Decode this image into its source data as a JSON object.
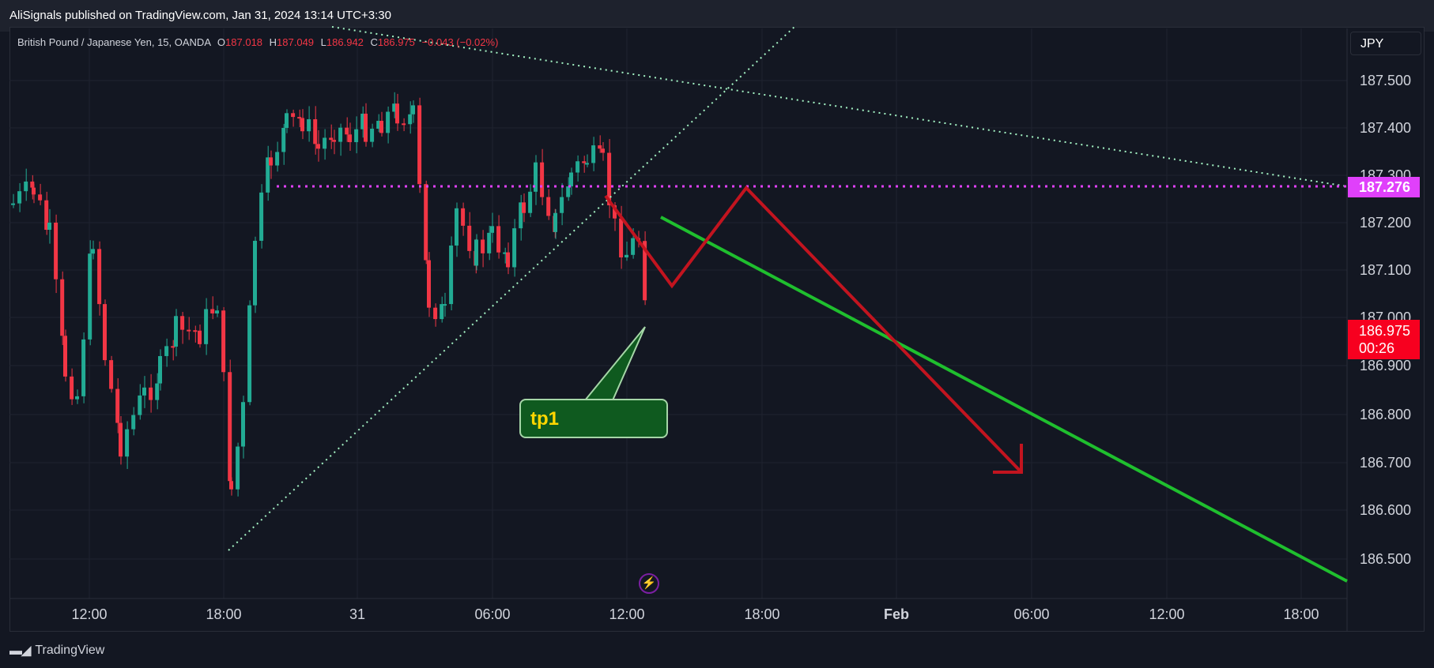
{
  "header": {
    "published": "AliSignals published on TradingView.com, Jan 31, 2024 13:14 UTC+3:30"
  },
  "legend": {
    "symbol": "British Pound / Japanese Yen, 15, OANDA",
    "o_label": "O",
    "o_value": "187.018",
    "h_label": "H",
    "h_value": "187.049",
    "l_label": "L",
    "l_value": "186.942",
    "c_label": "C",
    "c_value": "186.975",
    "change": "−0.043 (−0.02%)"
  },
  "currency_button": "JPY",
  "price_axis": {
    "ticks": [
      "187.500",
      "187.400",
      "187.300",
      "187.200",
      "187.100",
      "187.000",
      "186.900",
      "186.800",
      "186.700",
      "186.600",
      "186.500"
    ]
  },
  "time_axis": {
    "ticks": [
      "12:00",
      "18:00",
      "31",
      "06:00",
      "12:00",
      "18:00",
      "Feb",
      "06:00",
      "12:00",
      "18:00"
    ]
  },
  "price_tags": {
    "level": "187.276",
    "last_price": "186.975",
    "countdown": "00:26"
  },
  "annotation": {
    "label": "tp1"
  },
  "footer": {
    "brand": "TradingView"
  },
  "colors": {
    "up": "#22ab94",
    "down": "#f23645",
    "level_line": "#e040fb",
    "trend_line": "#1fbf2e",
    "path_line": "#c2141f",
    "tp_bg": "#0f5a1f"
  }
}
